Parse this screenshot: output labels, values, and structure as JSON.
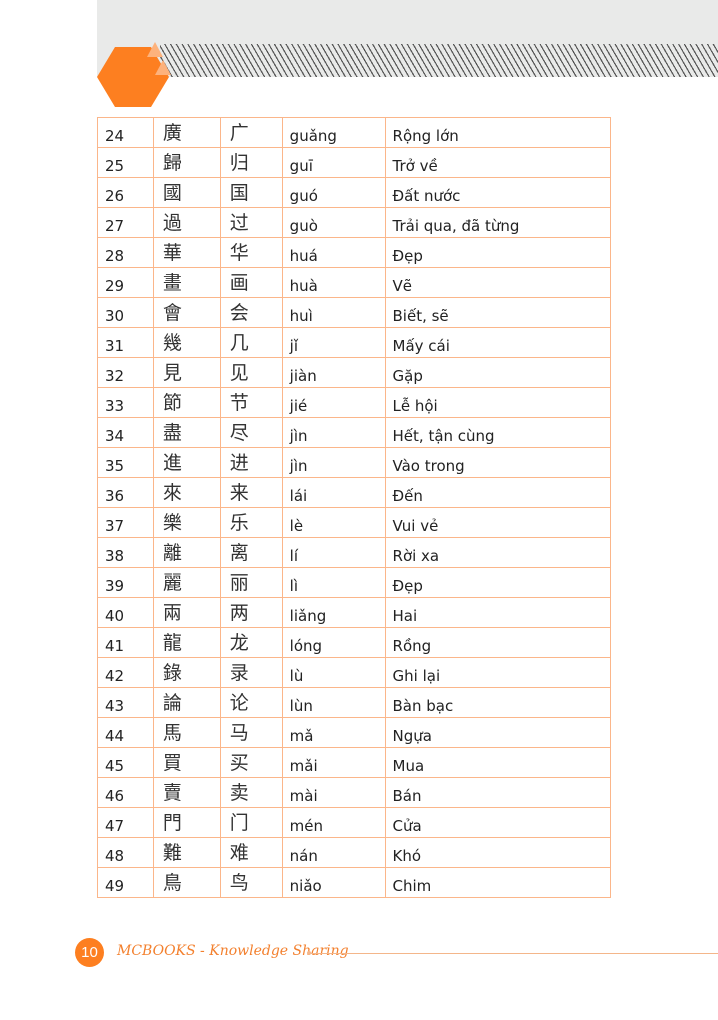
{
  "header": {
    "accent": "#fd7f20"
  },
  "table": {
    "rows": [
      [
        "24",
        "廣",
        "广",
        "guǎng",
        "Rộng lớn"
      ],
      [
        "25",
        "歸",
        "归",
        "guī",
        "Trở về"
      ],
      [
        "26",
        "國",
        "国",
        "guó",
        "Đất nước"
      ],
      [
        "27",
        "過",
        "过",
        "guò",
        "Trải qua, đã từng"
      ],
      [
        "28",
        "華",
        "华",
        "huá",
        "Đẹp"
      ],
      [
        "29",
        "畫",
        "画",
        "huà",
        "Vẽ"
      ],
      [
        "30",
        "會",
        "会",
        "huì",
        "Biết, sẽ"
      ],
      [
        "31",
        "幾",
        "几",
        "jǐ",
        "Mấy cái"
      ],
      [
        "32",
        "見",
        "见",
        "jiàn",
        "Gặp"
      ],
      [
        "33",
        "節",
        "节",
        "jié",
        "Lễ hội"
      ],
      [
        "34",
        "盡",
        "尽",
        "jìn",
        "Hết, tận cùng"
      ],
      [
        "35",
        "進",
        "进",
        "jìn",
        "Vào trong"
      ],
      [
        "36",
        "來",
        "来",
        "lái",
        "Đến"
      ],
      [
        "37",
        "樂",
        "乐",
        "lè",
        "Vui vẻ"
      ],
      [
        "38",
        "離",
        "离",
        "lí",
        "Rời xa"
      ],
      [
        "39",
        "麗",
        "丽",
        "lì",
        "Đẹp"
      ],
      [
        "40",
        "兩",
        "两",
        "liǎng",
        "Hai"
      ],
      [
        "41",
        "龍",
        "龙",
        "lóng",
        "Rồng"
      ],
      [
        "42",
        "錄",
        "录",
        "lù",
        "Ghi lại"
      ],
      [
        "43",
        "論",
        "论",
        "lùn",
        "Bàn bạc"
      ],
      [
        "44",
        "馬",
        "马",
        "mǎ",
        "Ngựa"
      ],
      [
        "45",
        "買",
        "买",
        "mǎi",
        "Mua"
      ],
      [
        "46",
        "賣",
        "卖",
        "mài",
        "Bán"
      ],
      [
        "47",
        "門",
        "门",
        "mén",
        "Cửa"
      ],
      [
        "48",
        "難",
        "难",
        "nán",
        "Khó"
      ],
      [
        "49",
        "鳥",
        "鸟",
        "niǎo",
        "Chim"
      ]
    ]
  },
  "footer": {
    "page_number": "10",
    "brand": "MCBOOKS - Knowledge Sharing"
  }
}
